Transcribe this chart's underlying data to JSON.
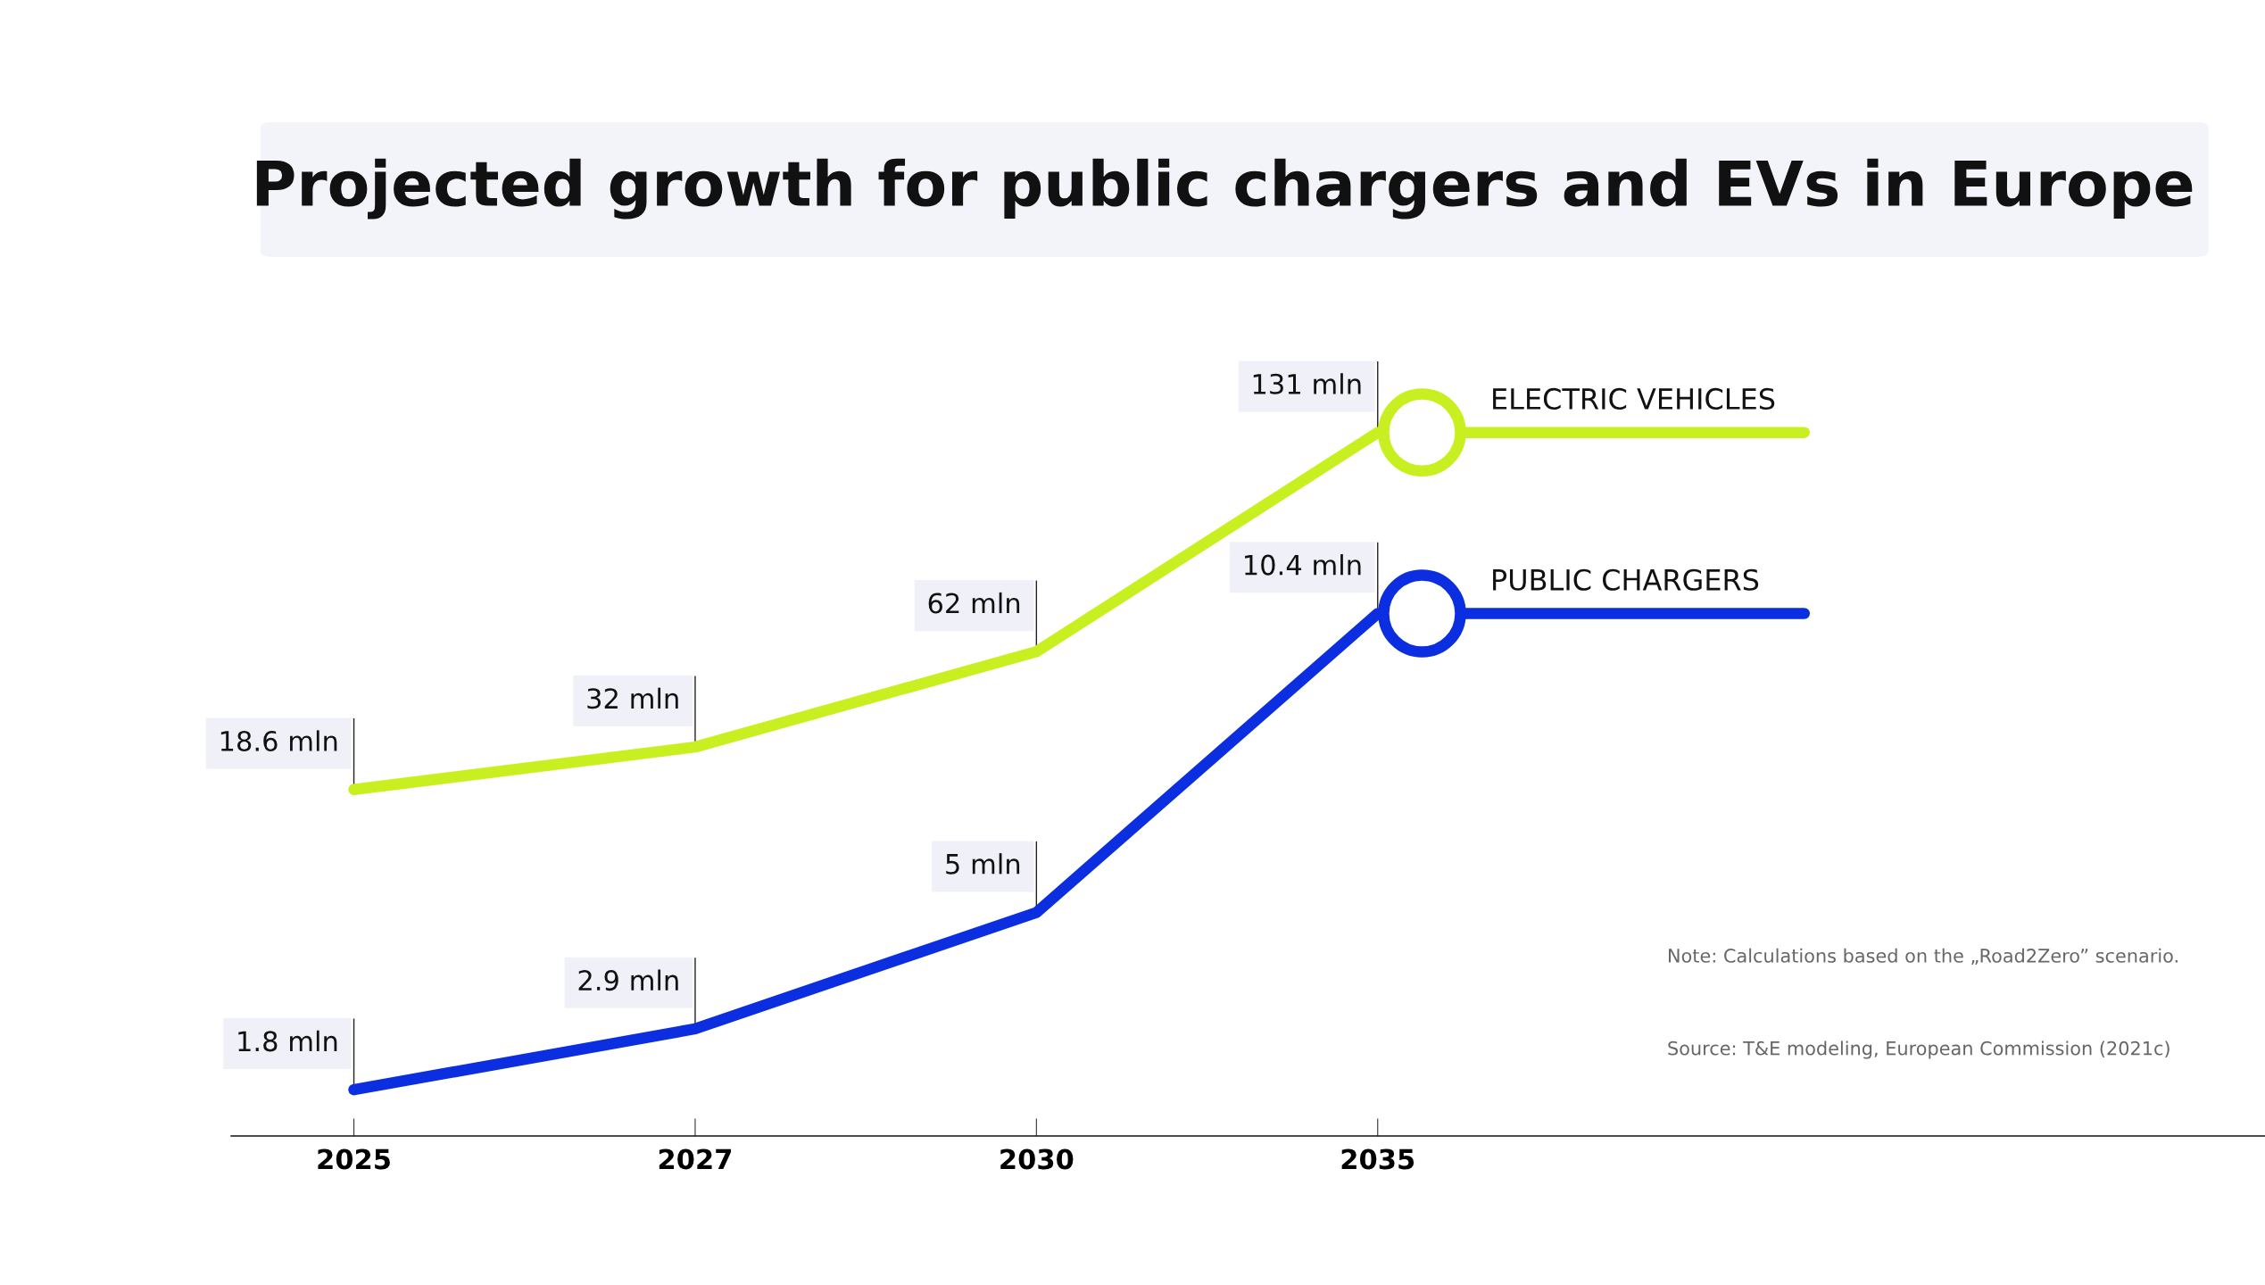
{
  "chart_data": {
    "type": "line",
    "title": "Projected growth for public chargers and EVs in Europe",
    "categories": [
      "2025",
      "2027",
      "2030",
      "2035"
    ],
    "series": [
      {
        "name": "ELECTRIC VEHICLES",
        "color": "#c8f020",
        "values": [
          18.6,
          32,
          62,
          131
        ],
        "value_labels": [
          "18.6 mln",
          "32 mln",
          "62 mln",
          "131 mln"
        ],
        "axis": "y"
      },
      {
        "name": "PUBLIC CHARGERS",
        "color": "#0b2ee0",
        "values": [
          1.8,
          2.9,
          5,
          10.4
        ],
        "value_labels": [
          "1.8 mln",
          "2.9 mln",
          "5 mln",
          "10.4 mln"
        ],
        "axis": "y2"
      }
    ],
    "tick_labels": "x",
    "grid": false,
    "legend": "right",
    "annotations": [
      "Note: Calculations based on the „Road2Zero” scenario.",
      "Source: T&E modeling, European Commission (2021c)"
    ]
  }
}
